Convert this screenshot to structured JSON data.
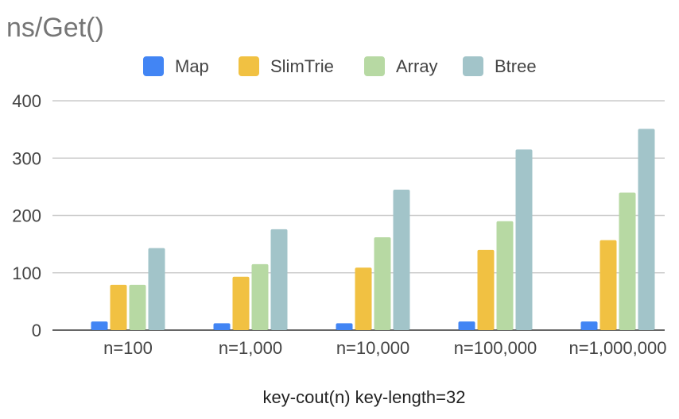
{
  "chart_data": {
    "type": "bar",
    "title": "ns/Get()",
    "xlabel": "key-cout(n) key-length=32",
    "ylabel": "",
    "ylim": [
      0,
      400
    ],
    "yticks": [
      0,
      100,
      200,
      300,
      400
    ],
    "grid": true,
    "legend_position": "top",
    "categories": [
      "n=100",
      "n=1,000",
      "n=10,000",
      "n=100,000",
      "n=1,000,000"
    ],
    "series": [
      {
        "name": "Map",
        "color": "#4285f4",
        "values": [
          15,
          12,
          12,
          15,
          15
        ]
      },
      {
        "name": "SlimTrie",
        "color": "#f1c142",
        "values": [
          79,
          93,
          109,
          140,
          157
        ]
      },
      {
        "name": "Array",
        "color": "#b7d9a3",
        "values": [
          79,
          115,
          162,
          190,
          240
        ]
      },
      {
        "name": "Btree",
        "color": "#a2c4c9",
        "values": [
          143,
          176,
          245,
          315,
          351
        ]
      }
    ]
  }
}
